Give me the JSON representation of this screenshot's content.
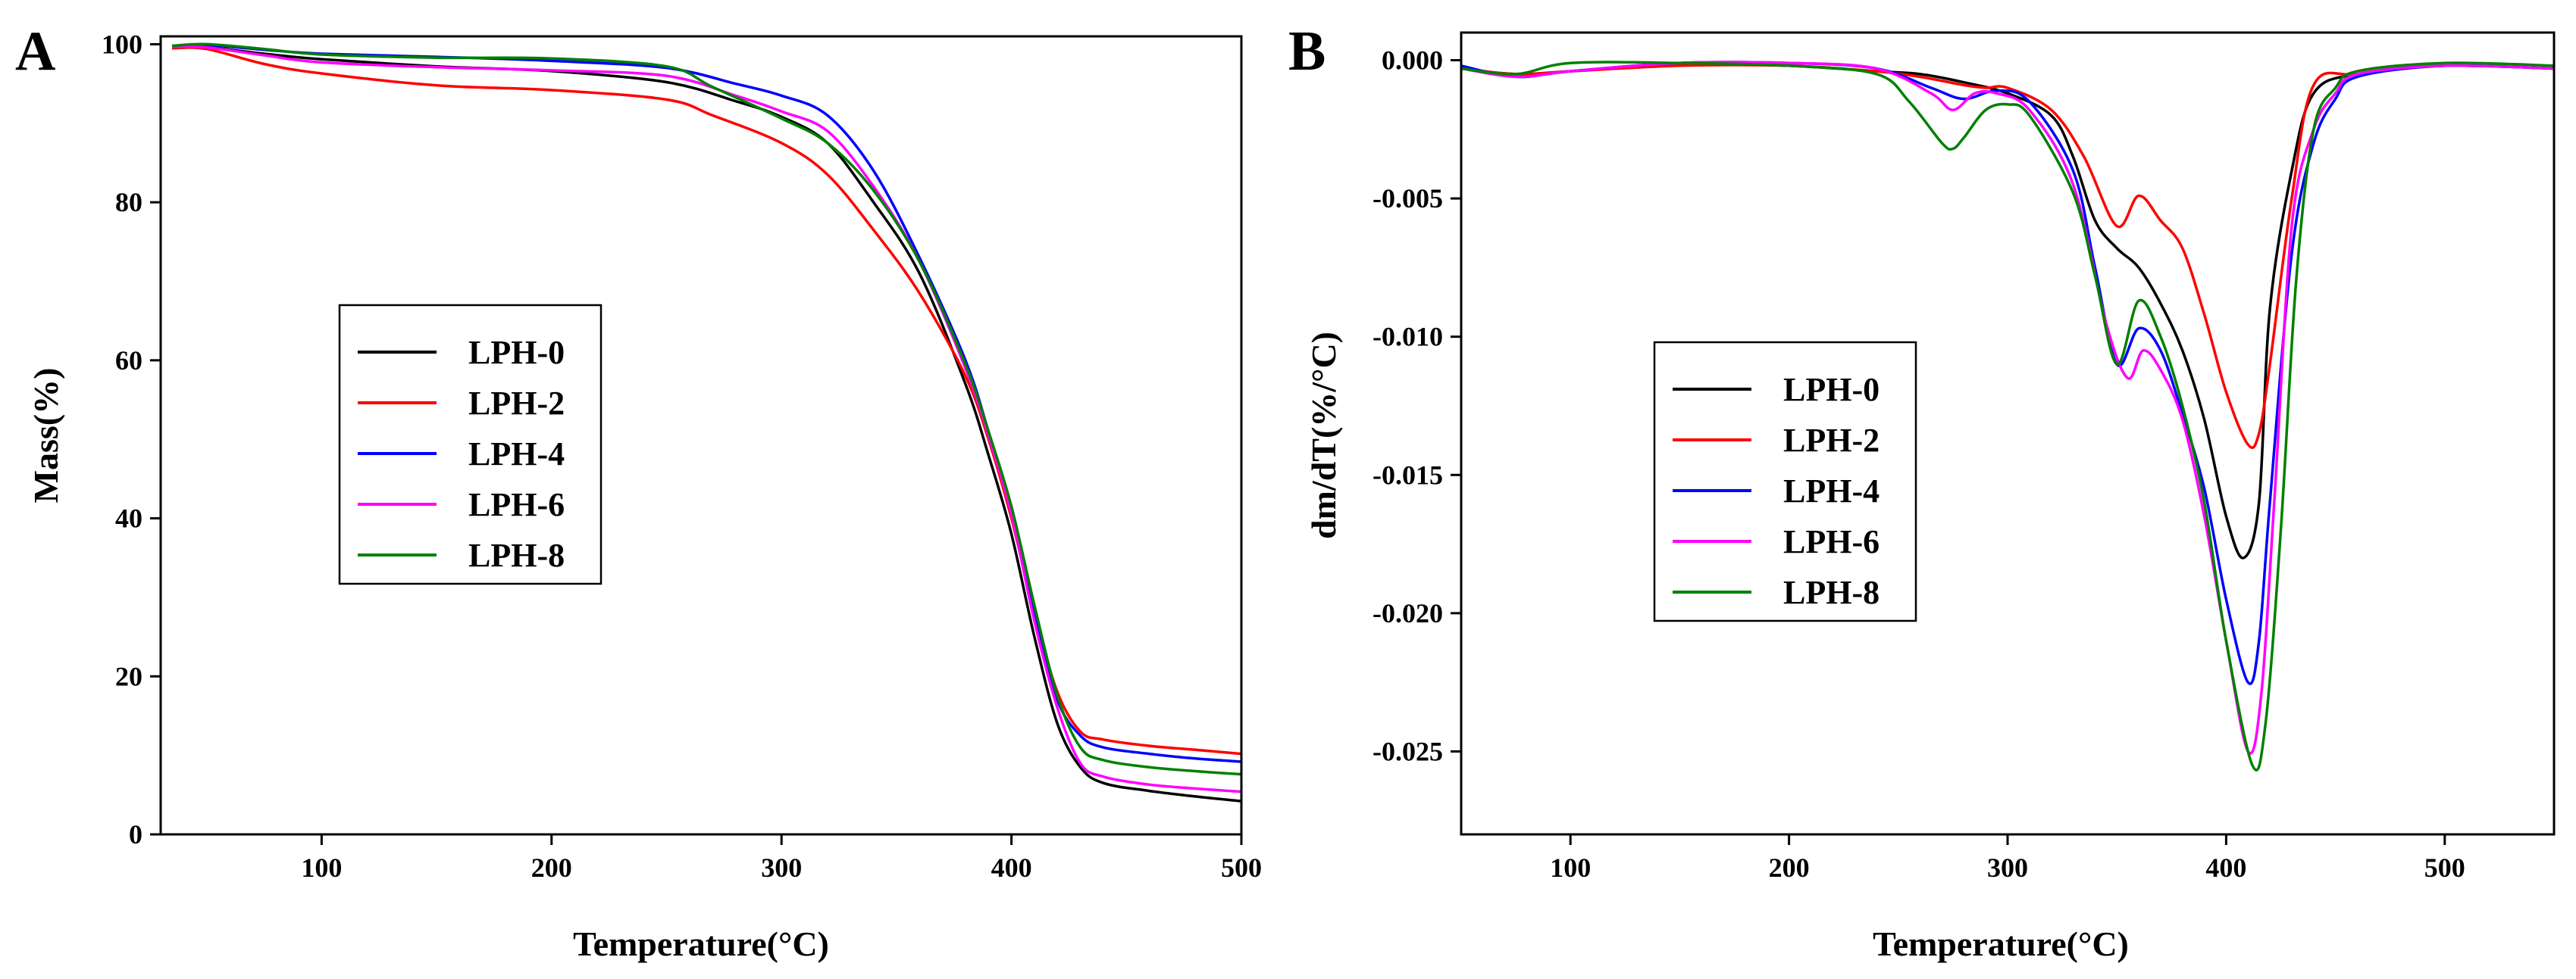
{
  "figure": {
    "panel_labels": [
      "A",
      "B"
    ]
  },
  "chart_data": [
    {
      "type": "line",
      "panel": "A",
      "title": "",
      "xlabel": "Temperature(°C)",
      "ylabel": "Mass(%)",
      "xlim": [
        30,
        500
      ],
      "ylim": [
        0,
        101
      ],
      "xticks": [
        100,
        200,
        300,
        400,
        500
      ],
      "yticks": [
        0,
        20,
        40,
        60,
        80,
        100
      ],
      "grid": false,
      "legend_position": "center-left",
      "series": [
        {
          "name": "LPH-0",
          "color": "#000000",
          "x": [
            35,
            50,
            75,
            100,
            150,
            200,
            250,
            280,
            300,
            320,
            340,
            360,
            380,
            390,
            400,
            410,
            420,
            430,
            440,
            460,
            480,
            500
          ],
          "y": [
            99.5,
            99.6,
            98.8,
            98.1,
            97.2,
            96.6,
            95.2,
            92.8,
            90.8,
            87.5,
            80,
            71,
            57,
            48,
            38,
            25,
            14,
            8.5,
            6.5,
            5.5,
            4.8,
            4.2
          ]
        },
        {
          "name": "LPH-2",
          "color": "#ff0000",
          "x": [
            35,
            50,
            75,
            100,
            150,
            200,
            250,
            270,
            300,
            320,
            340,
            360,
            380,
            390,
            400,
            410,
            420,
            430,
            440,
            460,
            480,
            500
          ],
          "y": [
            99.5,
            99.4,
            97.5,
            96.3,
            94.8,
            94.2,
            93,
            91,
            87.5,
            83.5,
            76.5,
            68.5,
            58,
            50,
            40,
            28,
            18,
            13,
            12,
            11.2,
            10.7,
            10.2
          ]
        },
        {
          "name": "LPH-4",
          "color": "#0000ff",
          "x": [
            35,
            50,
            75,
            100,
            150,
            200,
            250,
            280,
            300,
            320,
            340,
            360,
            380,
            390,
            400,
            410,
            420,
            430,
            440,
            460,
            480,
            500
          ],
          "y": [
            99.8,
            99.9,
            99.3,
            98.8,
            98.4,
            97.9,
            97,
            95,
            93.5,
            91,
            84,
            73,
            60,
            51,
            41,
            28,
            17,
            12.5,
            11,
            10.2,
            9.6,
            9.2
          ]
        },
        {
          "name": "LPH-6",
          "color": "#ff00ff",
          "x": [
            35,
            50,
            75,
            100,
            150,
            200,
            250,
            280,
            300,
            320,
            340,
            360,
            380,
            390,
            400,
            410,
            420,
            430,
            440,
            460,
            480,
            500
          ],
          "y": [
            99.7,
            99.6,
            98.6,
            97.7,
            97.1,
            96.7,
            96,
            93.5,
            91.5,
            89,
            82,
            72.5,
            59,
            50.5,
            40.5,
            27,
            16,
            9,
            7.3,
            6.3,
            5.8,
            5.4
          ]
        },
        {
          "name": "LPH-8",
          "color": "#008000",
          "x": [
            35,
            50,
            75,
            100,
            150,
            200,
            250,
            270,
            300,
            320,
            340,
            360,
            380,
            390,
            400,
            410,
            420,
            430,
            440,
            460,
            480,
            500
          ],
          "y": [
            99.8,
            100,
            99.4,
            98.7,
            98.3,
            98.2,
            97.2,
            94.6,
            90.6,
            87.5,
            81.5,
            72.5,
            59.5,
            51,
            41.5,
            29,
            17.5,
            11,
            9.4,
            8.5,
            8,
            7.6
          ]
        }
      ]
    },
    {
      "type": "line",
      "panel": "B",
      "title": "",
      "xlabel": "Temperature(°C)",
      "ylabel": "dm/dT(%/°C)",
      "xlim": [
        50,
        550
      ],
      "ylim": [
        -0.028,
        0.001
      ],
      "xticks": [
        100,
        200,
        300,
        400,
        500
      ],
      "yticks": [
        0.0,
        -0.005,
        -0.01,
        -0.015,
        -0.02,
        -0.025
      ],
      "ytick_labels": [
        "0.000",
        "-0.005",
        "-0.010",
        "-0.015",
        "-0.020",
        "-0.025"
      ],
      "grid": false,
      "legend_position": "center-left",
      "series": [
        {
          "name": "LPH-0",
          "color": "#000000",
          "x": [
            50,
            75,
            100,
            150,
            200,
            240,
            260,
            280,
            300,
            320,
            330,
            340,
            350,
            360,
            370,
            380,
            390,
            400,
            408,
            415,
            420,
            430,
            440,
            460,
            500,
            550
          ],
          "y": [
            -0.0003,
            -0.0005,
            -0.0004,
            -0.0001,
            -0.0002,
            -0.0004,
            -0.0005,
            -0.0008,
            -0.0012,
            -0.002,
            -0.0035,
            -0.0058,
            -0.0068,
            -0.0075,
            -0.0088,
            -0.0105,
            -0.013,
            -0.0165,
            -0.018,
            -0.016,
            -0.009,
            -0.004,
            -0.0012,
            -0.0005,
            -0.0002,
            -0.0003
          ]
        },
        {
          "name": "LPH-2",
          "color": "#ff0000",
          "x": [
            50,
            75,
            100,
            150,
            200,
            240,
            260,
            280,
            290,
            300,
            320,
            335,
            350,
            360,
            370,
            380,
            390,
            400,
            410,
            415,
            420,
            430,
            440,
            460,
            500,
            550
          ],
          "y": [
            -0.0003,
            -0.0005,
            -0.0004,
            -0.0002,
            -0.0002,
            -0.0004,
            -0.0006,
            -0.0009,
            -0.001,
            -0.001,
            -0.0018,
            -0.0035,
            -0.006,
            -0.0049,
            -0.0058,
            -0.0068,
            -0.0092,
            -0.012,
            -0.0139,
            -0.0135,
            -0.011,
            -0.005,
            -0.0009,
            -0.0005,
            -0.0002,
            -0.0003
          ]
        },
        {
          "name": "LPH-4",
          "color": "#0000ff",
          "x": [
            50,
            75,
            100,
            150,
            200,
            240,
            265,
            280,
            295,
            310,
            330,
            340,
            350,
            360,
            370,
            380,
            390,
            400,
            410,
            415,
            420,
            430,
            440,
            450,
            460,
            500,
            550
          ],
          "y": [
            -0.0002,
            -0.0006,
            -0.0004,
            -0.0001,
            -0.0001,
            -0.0003,
            -0.001,
            -0.0014,
            -0.0011,
            -0.0015,
            -0.004,
            -0.0075,
            -0.011,
            -0.0097,
            -0.0105,
            -0.0128,
            -0.0155,
            -0.0195,
            -0.0225,
            -0.021,
            -0.016,
            -0.007,
            -0.003,
            -0.0014,
            -0.0006,
            -0.0002,
            -0.0003
          ]
        },
        {
          "name": "LPH-6",
          "color": "#ff00ff",
          "x": [
            50,
            75,
            100,
            150,
            200,
            240,
            265,
            275,
            285,
            295,
            310,
            330,
            345,
            355,
            362,
            370,
            380,
            390,
            400,
            410,
            416,
            422,
            430,
            440,
            450,
            460,
            500,
            550
          ],
          "y": [
            -0.0003,
            -0.0006,
            -0.0004,
            -0.0001,
            -0.0001,
            -0.0003,
            -0.0012,
            -0.0018,
            -0.0012,
            -0.0012,
            -0.0018,
            -0.0045,
            -0.0095,
            -0.0115,
            -0.0105,
            -0.0112,
            -0.013,
            -0.0165,
            -0.021,
            -0.025,
            -0.023,
            -0.016,
            -0.006,
            -0.0025,
            -0.0012,
            -0.0005,
            -0.0002,
            -0.0003
          ]
        },
        {
          "name": "LPH-8",
          "color": "#008000",
          "x": [
            50,
            75,
            100,
            150,
            200,
            240,
            255,
            270,
            275,
            280,
            290,
            300,
            310,
            330,
            340,
            350,
            360,
            370,
            380,
            390,
            400,
            412,
            418,
            425,
            432,
            440,
            450,
            460,
            500,
            550
          ],
          "y": [
            -0.0003,
            -0.0005,
            -0.0001,
            -0.0001,
            -0.0002,
            -0.0005,
            -0.0015,
            -0.003,
            -0.0032,
            -0.0028,
            -0.0018,
            -0.0016,
            -0.002,
            -0.0048,
            -0.0078,
            -0.011,
            -0.0087,
            -0.01,
            -0.0125,
            -0.016,
            -0.021,
            -0.0255,
            -0.024,
            -0.017,
            -0.008,
            -0.0025,
            -0.001,
            -0.0004,
            -0.0001,
            -0.0002
          ]
        }
      ]
    }
  ]
}
